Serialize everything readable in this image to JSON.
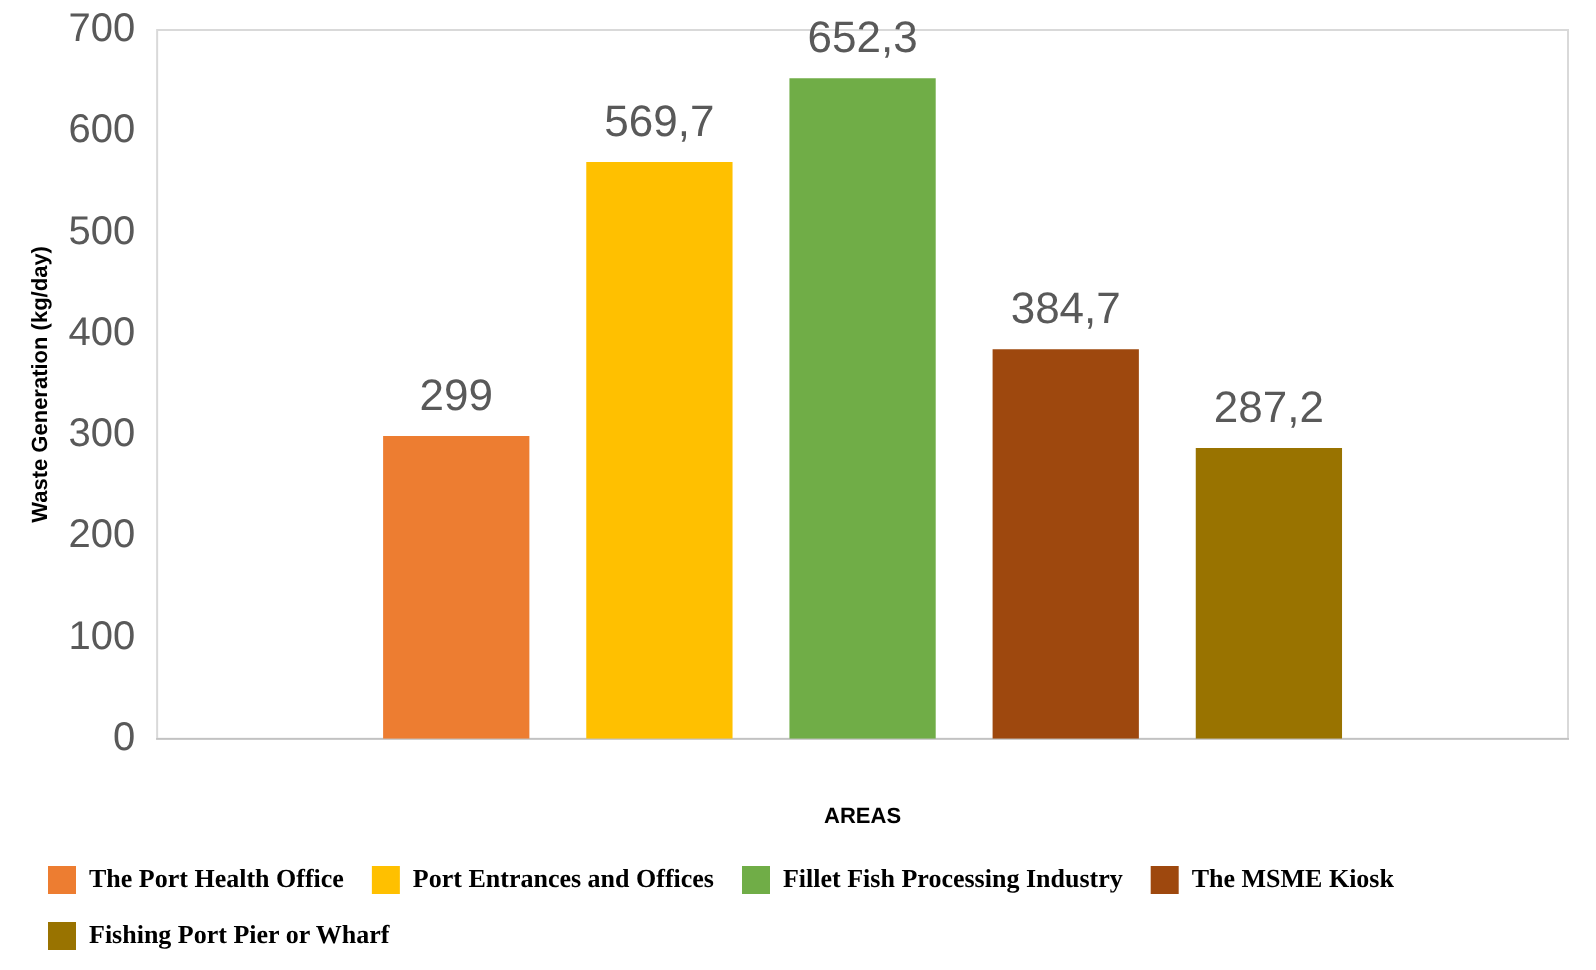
{
  "chart_data": {
    "type": "bar",
    "xlabel": "AREAS",
    "ylabel": "Waste Generation (kg/day)",
    "categories": [
      null
    ],
    "series": [
      {
        "name": "The Port Health Office",
        "color": "#ed7d31",
        "values": [
          299
        ],
        "value_labels": [
          "299"
        ]
      },
      {
        "name": "Port Entrances and Offices",
        "color": "#ffc000",
        "values": [
          569.7
        ],
        "value_labels": [
          "569,7"
        ]
      },
      {
        "name": "Fillet Fish Processing Industry",
        "color": "#70ad47",
        "values": [
          652.3
        ],
        "value_labels": [
          "652,3"
        ]
      },
      {
        "name": "The MSME Kiosk",
        "color": "#9e480e",
        "values": [
          384.7
        ],
        "value_labels": [
          "384,7"
        ]
      },
      {
        "name": "Fishing Port Pier or Wharf",
        "color": "#997300",
        "values": [
          287.2
        ],
        "value_labels": [
          "287,2"
        ]
      }
    ],
    "ylim": [
      0,
      700
    ],
    "yticks": [
      0,
      100,
      200,
      300,
      400,
      500,
      600,
      700
    ],
    "grid": false,
    "legend": "bottom"
  }
}
